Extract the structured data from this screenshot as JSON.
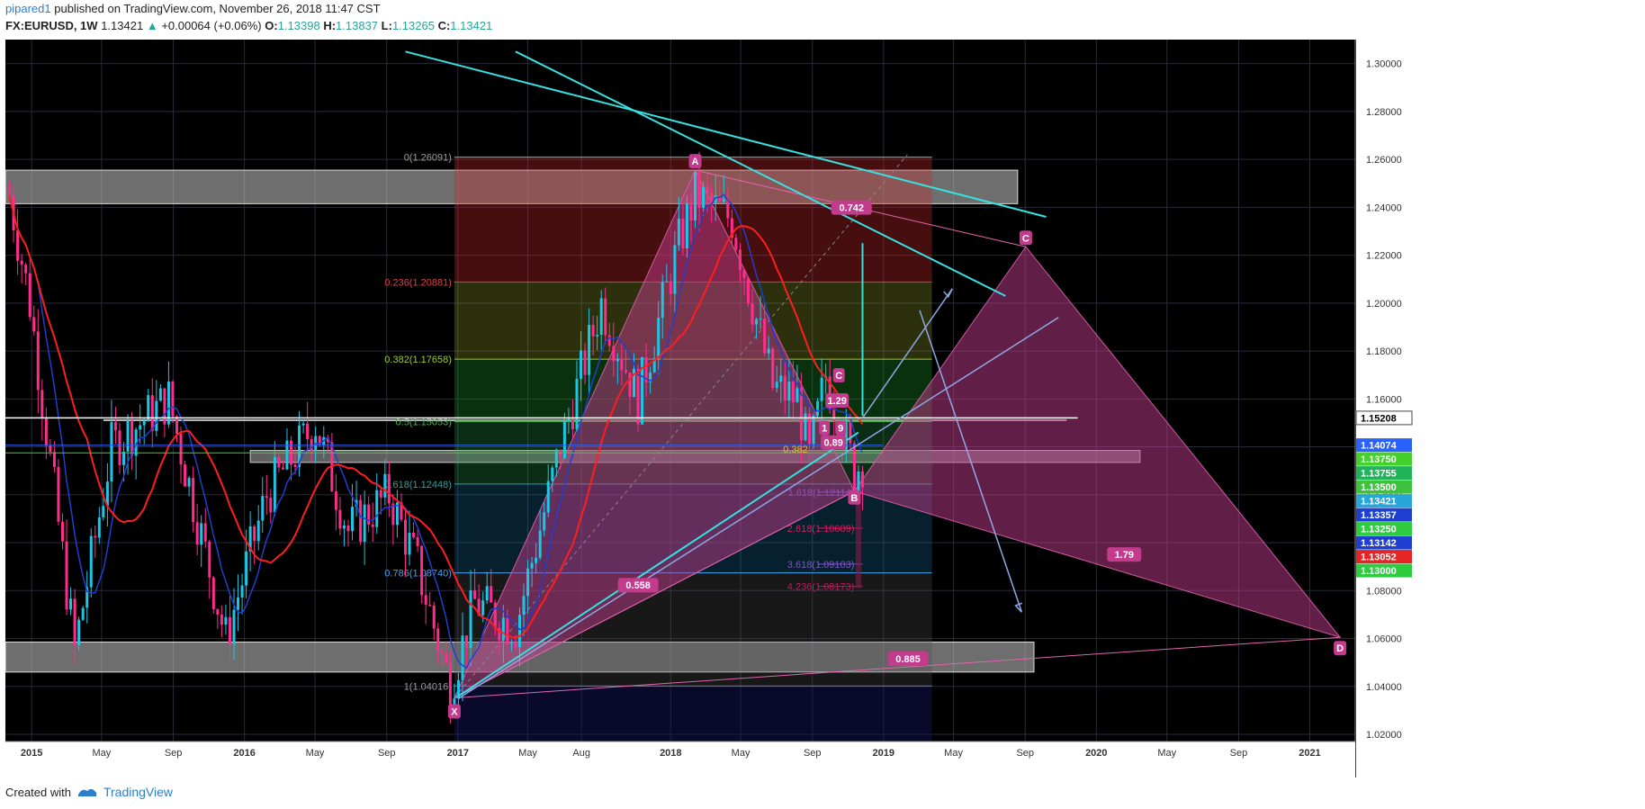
{
  "header": {
    "user": "pipared1",
    "published": "published on TradingView.com, November 26, 2018 11:47 CST",
    "symbol": "FX:EURUSD, 1W",
    "last": "1.13421",
    "change": "+0.00064 (+0.06%)",
    "o_label": "O:",
    "o": "1.13398",
    "h_label": "H:",
    "h": "1.13837",
    "l_label": "L:",
    "l": "1.13265",
    "c_label": "C:",
    "c": "1.13421"
  },
  "footer": {
    "created_with": "Created with",
    "brand": "TradingView"
  },
  "colors": {
    "background": "#000000",
    "up_candle": "#1ec6e6",
    "down_candle": "#ff2d8e",
    "ma_fast": "#1e3fd0",
    "ma_slow": "#ff1e1e",
    "pattern": "#c23b8c",
    "trendline": "#38e0e0",
    "projection": "#8fa8e6"
  },
  "chart_data": {
    "type": "candlestick",
    "price_axis": [
      "1.30000",
      "1.28000",
      "1.26000",
      "1.24000",
      "1.22000",
      "1.20000",
      "1.18000",
      "1.16000",
      "1.14000",
      "1.12000",
      "1.10000",
      "1.08000",
      "1.06000",
      "1.04000",
      "1.02000"
    ],
    "time_axis": [
      "2015",
      "May",
      "Sep",
      "2016",
      "May",
      "Sep",
      "2017",
      "May",
      "Aug",
      "2018",
      "May",
      "Sep",
      "2019",
      "May",
      "Sep",
      "2020",
      "May",
      "Sep",
      "2021"
    ],
    "price_tags": [
      {
        "label": "1.15208",
        "color": "#ffffff",
        "text": "#000000"
      },
      {
        "label": "1.14074",
        "color": "#2962ff",
        "text": "#ffffff"
      },
      {
        "label": "1.13750",
        "color": "#43d12a",
        "text": "#ffffff"
      },
      {
        "label": "1.13755",
        "color": "#21b35a",
        "text": "#ffffff"
      },
      {
        "label": "1.13500",
        "color": "#3cc23c",
        "text": "#ffffff"
      },
      {
        "label": "1.13421",
        "color": "#26a6d9",
        "text": "#ffffff"
      },
      {
        "label": "1.13357",
        "color": "#1e3fd0",
        "text": "#ffffff"
      },
      {
        "label": "1.13250",
        "color": "#2ecc40",
        "text": "#ffffff"
      },
      {
        "label": "1.13142",
        "color": "#1e3fd0",
        "text": "#ffffff"
      },
      {
        "label": "1.13052",
        "color": "#e52525",
        "text": "#ffffff"
      },
      {
        "label": "1.13000",
        "color": "#2ecc40",
        "text": "#ffffff"
      }
    ],
    "fib_levels": [
      {
        "label": "0(1.26091)",
        "price": 1.26091,
        "color": "#9e9e9e"
      },
      {
        "label": "0.236(1.20881)",
        "price": 1.20881,
        "color": "#e04040"
      },
      {
        "label": "0.382(1.17658)",
        "price": 1.17658,
        "color": "#9acd32"
      },
      {
        "label": "0.5(1.15053)",
        "price": 1.15053,
        "color": "#4caf50"
      },
      {
        "label": "0.618(1.12448)",
        "price": 1.12448,
        "color": "#26a69a"
      },
      {
        "label": "0.786(1.08740)",
        "price": 1.0874,
        "color": "#42a5f5"
      },
      {
        "label": "1(1.04016)",
        "price": 1.04016,
        "color": "#9e9e9e"
      }
    ],
    "fib_ext_levels": [
      {
        "label": "1.618(1.12114)",
        "price": 1.12114,
        "color": "#5c6bc0"
      },
      {
        "label": "2.618(1.10609)",
        "price": 1.10609,
        "color": "#d81b60"
      },
      {
        "label": "3.618(1.09103)",
        "price": 1.09103,
        "color": "#7e57c2"
      },
      {
        "label": "4.236(1.08173)",
        "price": 1.08173,
        "color": "#c2185b"
      }
    ],
    "pattern_points": [
      {
        "label": "X",
        "date": "2016-12-26",
        "price": 1.0352
      },
      {
        "label": "A",
        "date": "2018-02-12",
        "price": 1.2555
      },
      {
        "label": "B",
        "date": "2018-11-12",
        "price": 1.1215
      },
      {
        "label": "C",
        "date": "2019-09-02",
        "price": 1.2235
      },
      {
        "label": "D",
        "date": "2021-02-22",
        "price": 1.0605
      }
    ],
    "pattern_ratios": [
      "0.742",
      "0.558",
      "1.79",
      "0.885"
    ],
    "small_pattern_labels": [
      "C",
      "1.29",
      "1",
      "9",
      "0.89",
      "0.382"
    ]
  }
}
